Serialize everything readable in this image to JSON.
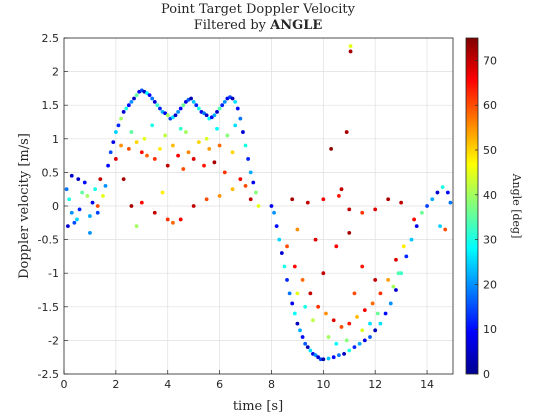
{
  "chart_data": {
    "type": "scatter",
    "title_line1": "Point Target Doppler Velocity",
    "title_line2_prefix": "Filtered by",
    "title_line2_bold": "ANGLE",
    "xlabel": "time [s]",
    "ylabel": "Doppler velocity [m/s]",
    "xlim": [
      0,
      15
    ],
    "ylim": [
      -2.5,
      2.5
    ],
    "xticks": [
      0,
      2,
      4,
      6,
      8,
      10,
      12,
      14
    ],
    "yticks": [
      -2.5,
      -2,
      -1.5,
      -1,
      -0.5,
      0,
      0.5,
      1,
      1.5,
      2,
      2.5
    ],
    "grid": true,
    "colorbar": {
      "label": "Angle [deg]",
      "range": [
        0,
        75
      ],
      "ticks": [
        0,
        10,
        20,
        30,
        40,
        50,
        60,
        70
      ],
      "colormap": "jet"
    },
    "series": [
      {
        "points": [
          [
            0.1,
            0.25,
            18
          ],
          [
            0.2,
            0.1,
            30
          ],
          [
            0.3,
            -0.1,
            20
          ],
          [
            0.4,
            -0.25,
            15
          ],
          [
            0.5,
            -0.2,
            25
          ],
          [
            0.6,
            -0.05,
            12
          ],
          [
            0.7,
            0.2,
            35
          ],
          [
            0.8,
            0.35,
            10
          ],
          [
            0.9,
            0.15,
            40
          ],
          [
            1.0,
            -0.15,
            22
          ],
          [
            1.1,
            0.05,
            8
          ],
          [
            1.2,
            0.25,
            30
          ],
          [
            1.3,
            -0.1,
            14
          ],
          [
            0.15,
            -0.3,
            6
          ],
          [
            0.55,
            0.4,
            5
          ],
          [
            1.5,
            0.15,
            45
          ],
          [
            1.6,
            0.3,
            20
          ],
          [
            1.7,
            0.6,
            10
          ],
          [
            1.8,
            0.8,
            15
          ],
          [
            1.9,
            0.95,
            8
          ],
          [
            2.0,
            1.1,
            25
          ],
          [
            2.1,
            1.2,
            12
          ],
          [
            2.2,
            1.3,
            40
          ],
          [
            2.3,
            1.4,
            6
          ],
          [
            2.4,
            1.45,
            30
          ],
          [
            2.5,
            1.5,
            10
          ],
          [
            2.6,
            1.55,
            20
          ],
          [
            2.7,
            1.6,
            5
          ],
          [
            2.8,
            1.65,
            35
          ],
          [
            2.9,
            1.7,
            8
          ],
          [
            3.0,
            1.72,
            15
          ],
          [
            3.1,
            1.7,
            4
          ],
          [
            3.2,
            1.68,
            28
          ],
          [
            3.3,
            1.65,
            10
          ],
          [
            3.4,
            1.6,
            18
          ],
          [
            3.5,
            1.55,
            6
          ],
          [
            3.6,
            1.5,
            32
          ],
          [
            3.7,
            1.45,
            12
          ],
          [
            3.8,
            1.4,
            22
          ],
          [
            3.9,
            1.38,
            8
          ],
          [
            4.0,
            1.35,
            40
          ],
          [
            4.1,
            1.3,
            14
          ],
          [
            4.2,
            1.32,
            26
          ],
          [
            4.3,
            1.35,
            5
          ],
          [
            4.4,
            1.4,
            20
          ],
          [
            4.5,
            1.45,
            10
          ],
          [
            4.6,
            1.5,
            36
          ],
          [
            4.7,
            1.55,
            7
          ],
          [
            4.8,
            1.58,
            16
          ],
          [
            4.9,
            1.6,
            4
          ],
          [
            5.0,
            1.55,
            24
          ],
          [
            5.1,
            1.5,
            12
          ],
          [
            5.2,
            1.45,
            30
          ],
          [
            5.3,
            1.4,
            8
          ],
          [
            5.4,
            1.38,
            18
          ],
          [
            5.5,
            1.35,
            5
          ],
          [
            5.6,
            1.3,
            28
          ],
          [
            5.7,
            1.32,
            10
          ],
          [
            5.8,
            1.35,
            22
          ],
          [
            5.9,
            1.4,
            6
          ],
          [
            6.0,
            1.45,
            34
          ],
          [
            6.1,
            1.5,
            12
          ],
          [
            6.2,
            1.55,
            20
          ],
          [
            6.3,
            1.6,
            8
          ],
          [
            6.4,
            1.62,
            14
          ],
          [
            6.5,
            1.6,
            4
          ],
          [
            6.6,
            1.55,
            26
          ],
          [
            6.7,
            1.45,
            10
          ],
          [
            6.8,
            1.3,
            18
          ],
          [
            6.9,
            1.1,
            6
          ],
          [
            7.0,
            0.9,
            30
          ],
          [
            7.1,
            0.7,
            12
          ],
          [
            7.2,
            0.5,
            22
          ],
          [
            7.3,
            0.35,
            8
          ],
          [
            7.4,
            0.2,
            38
          ],
          [
            2.2,
            0.9,
            55
          ],
          [
            2.5,
            0.85,
            60
          ],
          [
            2.8,
            0.95,
            50
          ],
          [
            3.0,
            0.8,
            65
          ],
          [
            3.2,
            0.75,
            58
          ],
          [
            3.5,
            0.7,
            62
          ],
          [
            3.7,
            0.85,
            48
          ],
          [
            4.0,
            0.6,
            70
          ],
          [
            4.2,
            0.9,
            52
          ],
          [
            4.4,
            0.75,
            66
          ],
          [
            4.6,
            0.55,
            60
          ],
          [
            4.8,
            0.8,
            56
          ],
          [
            5.0,
            0.7,
            68
          ],
          [
            5.2,
            0.95,
            50
          ],
          [
            5.4,
            0.6,
            64
          ],
          [
            5.6,
            0.85,
            54
          ],
          [
            5.8,
            0.65,
            72
          ],
          [
            6.0,
            0.9,
            58
          ],
          [
            6.2,
            0.5,
            62
          ],
          [
            6.5,
            0.8,
            50
          ],
          [
            6.8,
            0.4,
            66
          ],
          [
            7.0,
            0.3,
            60
          ],
          [
            3.1,
            1.0,
            45
          ],
          [
            3.9,
            1.05,
            42
          ],
          [
            4.7,
            1.1,
            40
          ],
          [
            5.5,
            1.0,
            44
          ],
          [
            6.3,
            1.05,
            38
          ],
          [
            2.6,
            1.1,
            35
          ],
          [
            3.4,
            1.2,
            30
          ],
          [
            4.5,
            1.15,
            32
          ],
          [
            5.9,
            1.15,
            28
          ],
          [
            6.6,
            1.2,
            26
          ],
          [
            2.0,
            0.7,
            68
          ],
          [
            2.3,
            0.4,
            72
          ],
          [
            7.2,
            0.1,
            70
          ],
          [
            1.3,
            0.0,
            60
          ],
          [
            2.6,
            0.0,
            72
          ],
          [
            3.0,
            0.05,
            65
          ],
          [
            3.5,
            -0.1,
            70
          ],
          [
            4.0,
            -0.2,
            62
          ],
          [
            4.2,
            -0.25,
            58
          ],
          [
            4.5,
            -0.2,
            66
          ],
          [
            5.0,
            0.0,
            70
          ],
          [
            5.5,
            0.1,
            60
          ],
          [
            6.0,
            0.15,
            55
          ],
          [
            2.8,
            -0.3,
            40
          ],
          [
            3.8,
            0.2,
            48
          ],
          [
            6.5,
            0.25,
            52
          ],
          [
            7.5,
            0.0,
            45
          ],
          [
            8.0,
            0.0,
            8
          ],
          [
            8.1,
            -0.1,
            20
          ],
          [
            8.2,
            -0.3,
            10
          ],
          [
            8.3,
            -0.5,
            25
          ],
          [
            8.4,
            -0.7,
            6
          ],
          [
            8.5,
            -0.9,
            30
          ],
          [
            8.6,
            -1.1,
            12
          ],
          [
            8.7,
            -1.3,
            18
          ],
          [
            8.8,
            -1.45,
            8
          ],
          [
            8.9,
            -1.6,
            28
          ],
          [
            9.0,
            -1.75,
            5
          ],
          [
            9.1,
            -1.85,
            22
          ],
          [
            9.2,
            -1.95,
            10
          ],
          [
            9.3,
            -2.05,
            16
          ],
          [
            9.4,
            -2.1,
            4
          ],
          [
            9.5,
            -2.15,
            26
          ],
          [
            9.6,
            -2.2,
            8
          ],
          [
            9.7,
            -2.22,
            20
          ],
          [
            9.8,
            -2.25,
            6
          ],
          [
            9.9,
            -2.28,
            14
          ],
          [
            10.0,
            -2.28,
            3
          ],
          [
            10.2,
            -2.27,
            24
          ],
          [
            10.4,
            -2.25,
            10
          ],
          [
            10.6,
            -2.22,
            18
          ],
          [
            10.8,
            -2.2,
            5
          ],
          [
            11.0,
            -2.15,
            30
          ],
          [
            11.2,
            -2.1,
            12
          ],
          [
            11.4,
            -2.05,
            22
          ],
          [
            11.6,
            -2.0,
            8
          ],
          [
            11.8,
            -1.95,
            16
          ],
          [
            12.0,
            -1.85,
            4
          ],
          [
            12.2,
            -1.75,
            26
          ],
          [
            12.4,
            -1.6,
            10
          ],
          [
            12.6,
            -1.45,
            20
          ],
          [
            12.8,
            -1.25,
            6
          ],
          [
            13.0,
            -1.0,
            32
          ],
          [
            13.2,
            -0.75,
            12
          ],
          [
            13.4,
            -0.5,
            24
          ],
          [
            13.6,
            -0.3,
            8
          ],
          [
            13.8,
            -0.1,
            36
          ],
          [
            14.0,
            0.0,
            14
          ],
          [
            14.2,
            0.1,
            22
          ],
          [
            14.4,
            0.2,
            6
          ],
          [
            14.6,
            0.28,
            30
          ],
          [
            14.8,
            0.2,
            10
          ],
          [
            14.9,
            0.05,
            18
          ],
          [
            8.6,
            -0.6,
            60
          ],
          [
            8.9,
            -0.9,
            65
          ],
          [
            9.2,
            -1.1,
            58
          ],
          [
            9.5,
            -1.3,
            70
          ],
          [
            9.8,
            -1.5,
            62
          ],
          [
            10.1,
            -1.6,
            55
          ],
          [
            10.4,
            -1.7,
            68
          ],
          [
            10.7,
            -1.8,
            60
          ],
          [
            11.0,
            -1.75,
            64
          ],
          [
            11.3,
            -1.65,
            52
          ],
          [
            11.6,
            -1.55,
            66
          ],
          [
            11.9,
            -1.45,
            58
          ],
          [
            12.2,
            -1.3,
            62
          ],
          [
            12.5,
            -1.1,
            54
          ],
          [
            12.8,
            -0.8,
            68
          ],
          [
            9.0,
            -1.3,
            45
          ],
          [
            9.6,
            -1.7,
            42
          ],
          [
            10.2,
            -1.95,
            40
          ],
          [
            10.9,
            -2.0,
            38
          ],
          [
            11.5,
            -1.85,
            44
          ],
          [
            12.1,
            -1.6,
            36
          ],
          [
            12.7,
            -1.2,
            40
          ],
          [
            13.1,
            -0.6,
            48
          ],
          [
            9.3,
            -1.5,
            30
          ],
          [
            10.5,
            -2.05,
            28
          ],
          [
            11.8,
            -1.75,
            26
          ],
          [
            12.9,
            -1.0,
            34
          ],
          [
            10.0,
            -1.0,
            70
          ],
          [
            10.5,
            -0.6,
            66
          ],
          [
            11.0,
            -0.4,
            72
          ],
          [
            11.5,
            -0.9,
            64
          ],
          [
            12.0,
            -1.1,
            70
          ],
          [
            11.2,
            -1.3,
            60
          ],
          [
            9.7,
            -0.5,
            68
          ],
          [
            8.8,
            0.1,
            72
          ],
          [
            9.4,
            0.05,
            70
          ],
          [
            10.0,
            0.1,
            66
          ],
          [
            10.6,
            0.15,
            64
          ],
          [
            11.0,
            -0.05,
            70
          ],
          [
            11.5,
            -0.1,
            62
          ],
          [
            12.0,
            -0.05,
            68
          ],
          [
            12.5,
            0.1,
            72
          ],
          [
            13.0,
            0.05,
            70
          ],
          [
            10.3,
            0.85,
            74
          ],
          [
            10.9,
            1.1,
            72
          ],
          [
            11.05,
            2.3,
            72
          ],
          [
            11.05,
            2.38,
            45
          ],
          [
            10.7,
            0.25,
            70
          ],
          [
            9.0,
            -0.35,
            55
          ],
          [
            1.0,
            -0.4,
            20
          ],
          [
            0.3,
            0.45,
            6
          ],
          [
            14.5,
            -0.3,
            25
          ],
          [
            14.7,
            -0.35,
            60
          ],
          [
            13.5,
            -0.2,
            65
          ],
          [
            1.4,
            0.4,
            70
          ]
        ]
      }
    ]
  }
}
